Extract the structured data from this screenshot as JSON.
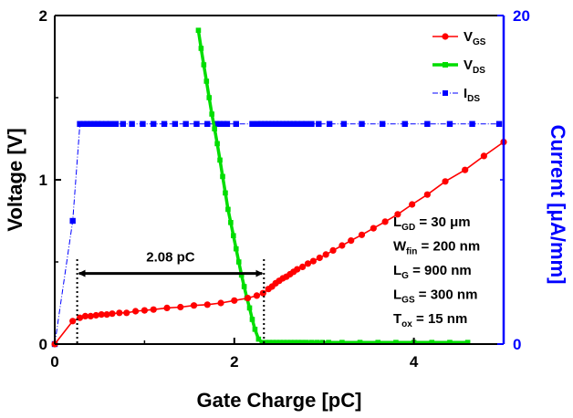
{
  "chart_data": {
    "type": "line",
    "xlabel": "Gate Charge [pC]",
    "ylabel_left": "Voltage [V]",
    "ylabel_right": "Current [μA/mm]",
    "xlim": [
      0,
      5
    ],
    "ylim_left": [
      0,
      2
    ],
    "ylim_right": [
      0,
      20
    ],
    "x_ticks": [
      0,
      2,
      4
    ],
    "y_left_ticks": [
      0,
      1,
      2
    ],
    "y_right_ticks": [
      0,
      20
    ],
    "grid": false,
    "legend_position": "top-right",
    "colors": {
      "vgs": "#ff0000",
      "vds": "#00dd00",
      "ids": "#0000ff",
      "right_axis": "#0000ff"
    },
    "series": [
      {
        "key": "vgs",
        "name_main": "V",
        "name_sub": "GS",
        "axis": "left",
        "marker": "circle",
        "x": [
          0,
          0.2,
          0.28,
          0.34,
          0.4,
          0.46,
          0.52,
          0.58,
          0.64,
          0.72,
          0.8,
          0.9,
          1.0,
          1.1,
          1.25,
          1.4,
          1.55,
          1.7,
          1.85,
          2.0,
          2.15,
          2.25,
          2.32,
          2.38,
          2.42,
          2.46,
          2.5,
          2.54,
          2.58,
          2.62,
          2.66,
          2.7,
          2.76,
          2.82,
          2.88,
          2.95,
          3.02,
          3.1,
          3.2,
          3.3,
          3.42,
          3.55,
          3.68,
          3.82,
          3.98,
          4.15,
          4.35,
          4.57,
          4.78,
          5.0
        ],
        "y": [
          0,
          0.14,
          0.16,
          0.17,
          0.17,
          0.175,
          0.18,
          0.18,
          0.185,
          0.19,
          0.19,
          0.2,
          0.205,
          0.21,
          0.22,
          0.225,
          0.235,
          0.24,
          0.25,
          0.265,
          0.28,
          0.295,
          0.31,
          0.335,
          0.35,
          0.37,
          0.385,
          0.4,
          0.41,
          0.425,
          0.44,
          0.455,
          0.47,
          0.49,
          0.505,
          0.525,
          0.545,
          0.57,
          0.6,
          0.63,
          0.665,
          0.705,
          0.745,
          0.79,
          0.85,
          0.91,
          0.99,
          1.06,
          1.145,
          1.23
        ]
      },
      {
        "key": "vds",
        "name_main": "V",
        "name_sub": "DS",
        "axis": "left",
        "marker": "square",
        "x": [
          1.6,
          1.63,
          1.66,
          1.69,
          1.72,
          1.75,
          1.78,
          1.81,
          1.84,
          1.87,
          1.9,
          1.93,
          1.96,
          1.99,
          2.02,
          2.05,
          2.08,
          2.11,
          2.14,
          2.17,
          2.2,
          2.23,
          2.27,
          2.31,
          2.35,
          2.39,
          2.43,
          2.47,
          2.51,
          2.55,
          2.59,
          2.63,
          2.67,
          2.71,
          2.75,
          2.8,
          2.86,
          2.92,
          2.98,
          3.05,
          3.2,
          3.4,
          3.6,
          3.8,
          4.0,
          4.2,
          4.4,
          4.6
        ],
        "y": [
          1.91,
          1.8,
          1.7,
          1.6,
          1.5,
          1.4,
          1.31,
          1.22,
          1.12,
          1.02,
          0.92,
          0.82,
          0.74,
          0.66,
          0.58,
          0.5,
          0.42,
          0.35,
          0.28,
          0.22,
          0.15,
          0.09,
          0.03,
          0.01,
          0.01,
          0.01,
          0.01,
          0.01,
          0.01,
          0.01,
          0.01,
          0.01,
          0.01,
          0.01,
          0.01,
          0.01,
          0.01,
          0.01,
          0.01,
          0.01,
          0.01,
          0.01,
          0.01,
          0.01,
          0.01,
          0.01,
          0.01,
          0.01
        ]
      },
      {
        "key": "ids",
        "name_main": "I",
        "name_sub": "DS",
        "axis": "right",
        "marker": "square",
        "x": [
          0,
          0.2,
          0.28,
          0.32,
          0.36,
          0.4,
          0.44,
          0.48,
          0.52,
          0.57,
          0.62,
          0.68,
          0.76,
          0.86,
          0.98,
          1.1,
          1.22,
          1.34,
          1.46,
          1.58,
          1.7,
          1.8,
          1.84,
          1.88,
          1.92,
          2.02,
          2.2,
          2.26,
          2.3,
          2.34,
          2.38,
          2.42,
          2.46,
          2.5,
          2.54,
          2.58,
          2.62,
          2.66,
          2.7,
          2.75,
          2.8,
          2.86,
          2.94,
          3.06,
          3.22,
          3.42,
          3.65,
          3.9,
          4.15,
          4.4,
          4.65,
          4.95
        ],
        "y": [
          0,
          7.5,
          13.4,
          13.4,
          13.4,
          13.4,
          13.4,
          13.4,
          13.4,
          13.4,
          13.4,
          13.4,
          13.4,
          13.4,
          13.4,
          13.4,
          13.4,
          13.4,
          13.4,
          13.4,
          13.4,
          13.4,
          13.4,
          13.4,
          13.4,
          13.4,
          13.4,
          13.4,
          13.4,
          13.4,
          13.4,
          13.4,
          13.4,
          13.4,
          13.4,
          13.4,
          13.4,
          13.4,
          13.4,
          13.4,
          13.4,
          13.4,
          13.4,
          13.4,
          13.4,
          13.4,
          13.4,
          13.4,
          13.4,
          13.4,
          13.4,
          13.4
        ]
      }
    ],
    "annotations": {
      "charge_label": "2.08 pC",
      "arrow_x_start": 0.25,
      "arrow_x_end": 2.33,
      "arrow_y": 0.43,
      "dotted_lines_x": [
        0.25,
        2.33
      ],
      "params": [
        {
          "main": "L",
          "sub": "GD",
          "rest": " = 30 μm"
        },
        {
          "main": "W",
          "sub": "fin",
          "rest": " = 200 nm"
        },
        {
          "main": "L",
          "sub": "G",
          "rest": " = 900 nm"
        },
        {
          "main": "L",
          "sub": "GS",
          "rest": " = 300 nm"
        },
        {
          "main": "T",
          "sub": "ox",
          "rest": " = 15 nm"
        }
      ]
    }
  }
}
